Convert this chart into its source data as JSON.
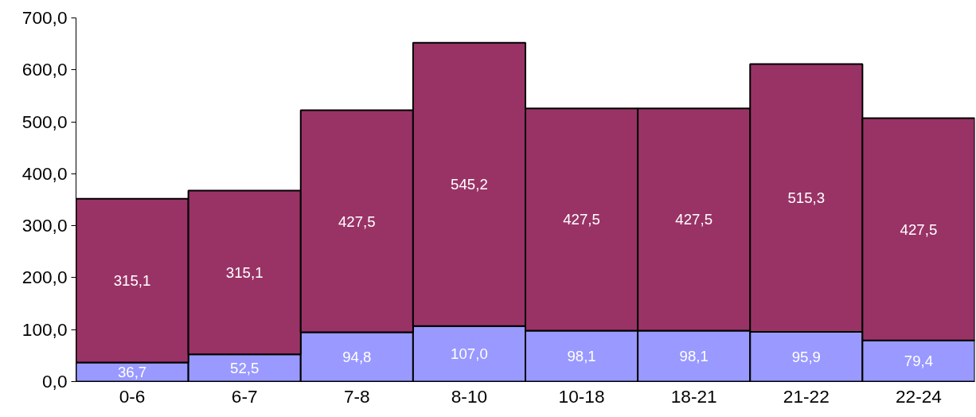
{
  "chart_data": {
    "type": "bar",
    "stacked": true,
    "categories": [
      "0-6",
      "6-7",
      "7-8",
      "8-10",
      "10-18",
      "18-21",
      "21-22",
      "22-24"
    ],
    "series": [
      {
        "color": "#9999ff",
        "values": [
          36.7,
          52.5,
          94.8,
          107.0,
          98.1,
          98.1,
          95.9,
          79.4
        ],
        "value_labels": [
          "36,7",
          "52,5",
          "94,8",
          "107,0",
          "98,1",
          "98,1",
          "95,9",
          "79,4"
        ]
      },
      {
        "color": "#993366",
        "values": [
          315.1,
          315.1,
          427.5,
          545.2,
          427.5,
          427.5,
          515.3,
          427.5
        ],
        "value_labels": [
          "315,1",
          "315,1",
          "427,5",
          "545,2",
          "427,5",
          "427,5",
          "515,3",
          "427,5"
        ]
      }
    ],
    "ylim": [
      0,
      700
    ],
    "yticks": [
      {
        "value": 0,
        "label": "0,0"
      },
      {
        "value": 100,
        "label": "100,0"
      },
      {
        "value": 200,
        "label": "200,0"
      },
      {
        "value": 300,
        "label": "300,0"
      },
      {
        "value": 400,
        "label": "400,0"
      },
      {
        "value": 500,
        "label": "500,0"
      },
      {
        "value": 600,
        "label": "600,0"
      },
      {
        "value": 700,
        "label": "700,0"
      }
    ],
    "grid": false
  }
}
